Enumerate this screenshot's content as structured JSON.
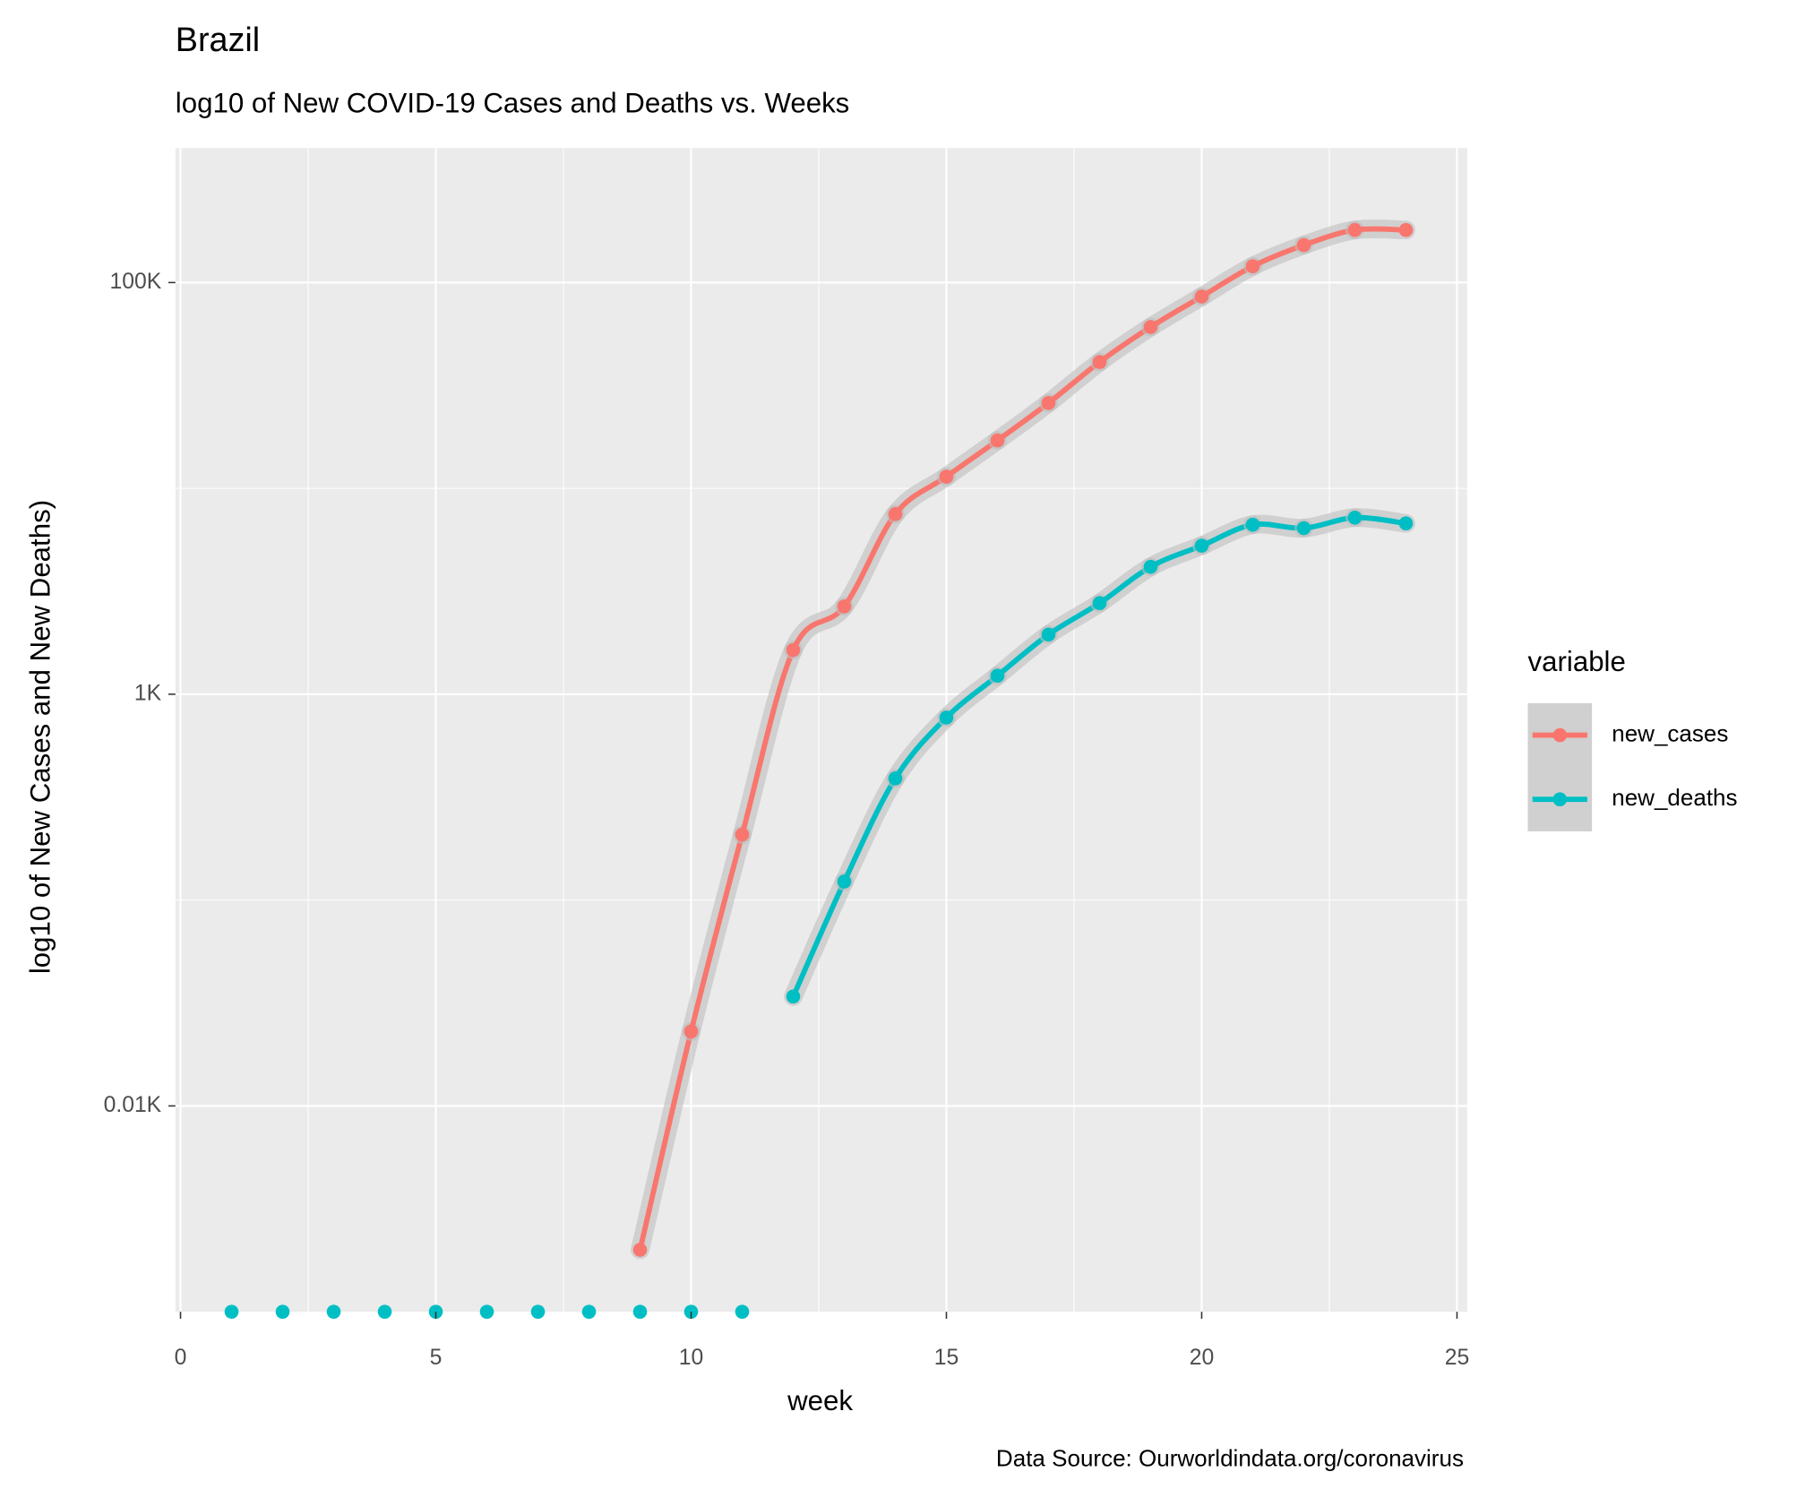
{
  "chart_data": {
    "type": "line",
    "title": "Brazil",
    "subtitle": "log10 of New COVID-19 Cases and Deaths vs. Weeks",
    "x_label": "week",
    "y_label": "log10 of New Cases and New Deaths)",
    "caption": "Data Source: Ourworldindata.org/coronavirus",
    "legend_title": "variable",
    "x": [
      1,
      2,
      3,
      4,
      5,
      6,
      7,
      8,
      9,
      10,
      11,
      12,
      13,
      14,
      15,
      16,
      17,
      18,
      19,
      20,
      21,
      22,
      23,
      24
    ],
    "series": [
      {
        "name": "new_cases",
        "color": "#F8766D",
        "values": [
          null,
          null,
          null,
          null,
          null,
          null,
          null,
          null,
          2,
          23,
          208,
          1640,
          2670,
          7500,
          11400,
          17100,
          26000,
          41100,
          60800,
          85500,
          120000,
          152000,
          180000,
          180000
        ]
      },
      {
        "name": "new_deaths",
        "color": "#00BFC4",
        "values": [
          0,
          0,
          0,
          0,
          0,
          0,
          0,
          0,
          0,
          0,
          0,
          34,
          123,
          390,
          770,
          1230,
          1950,
          2770,
          4160,
          5270,
          6660,
          6410,
          7210,
          6760
        ]
      }
    ],
    "xlim": [
      -0.1,
      25.2
    ],
    "xticks": [
      0,
      5,
      10,
      15,
      20,
      25
    ],
    "ylim": [
      1,
      450000
    ],
    "log_y": true,
    "yticks": [
      {
        "value": 10,
        "label": "0.01K"
      },
      {
        "value": 1000,
        "label": "1K"
      },
      {
        "value": 100000,
        "label": "100K"
      }
    ],
    "grid": true,
    "legend_position": "right"
  }
}
